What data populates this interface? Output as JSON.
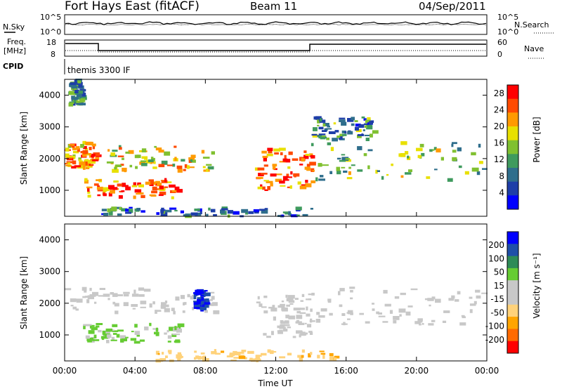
{
  "header": {
    "title": "Fort Hays East (fitACF)",
    "beam": "Beam 11",
    "date": "04/Sep/2011"
  },
  "status_panel": {
    "nsky_label": "N.Sky",
    "nsearch_label": "N.Search",
    "noise_axis_ticks": [
      "10^5",
      "10^0"
    ],
    "freq_label_line1": "Freq.",
    "freq_label_line2": "[MHz]",
    "freq_axis_ticks": [
      "18",
      "8"
    ],
    "nave_label": "Nave",
    "nave_axis_ticks": [
      "60",
      "0"
    ],
    "cpid_label": "CPID",
    "cpid_text": "themis 3300 IF"
  },
  "colors": {
    "power_scale": [
      "#0000ff",
      "#1e3ea8",
      "#2f6e8c",
      "#3f9a5e",
      "#80c030",
      "#e8e000",
      "#ff9a00",
      "#ff4a00",
      "#ff0000"
    ],
    "velocity_scale": [
      "#ff0000",
      "#ff6a00",
      "#ffa500",
      "#ffd27a",
      "#c8c8c8",
      "#c8c8c8",
      "#66cc33",
      "#2e8b57",
      "#1f4fa8",
      "#0000ff"
    ],
    "ground_scatter": "#c8c8c8"
  },
  "chart_data": [
    {
      "type": "heatmap",
      "name": "power",
      "title": "",
      "xlabel": "Time UT",
      "ylabel": "Slant Range [km]",
      "x_ticks": [
        "00:00",
        "04:00",
        "08:00",
        "12:00",
        "16:00",
        "20:00",
        "00:00"
      ],
      "x_range_hours": [
        0,
        24
      ],
      "y_ticks": [
        1000,
        2000,
        3000,
        4000
      ],
      "ylim": [
        180,
        4500
      ],
      "colorbar_label": "Power [dB]",
      "colorbar_ticks": [
        4,
        8,
        12,
        16,
        20,
        24,
        28
      ],
      "colorbar_range": [
        0,
        30
      ],
      "regions": [
        {
          "t": [
            0.0,
            1.8
          ],
          "r": [
            1700,
            2500
          ],
          "level": 22
        },
        {
          "t": [
            1.8,
            8.5
          ],
          "r": [
            1600,
            2400
          ],
          "level": 18
        },
        {
          "t": [
            1.0,
            6.5
          ],
          "r": [
            750,
            1350
          ],
          "level": 24
        },
        {
          "t": [
            10.8,
            14.0
          ],
          "r": [
            1000,
            2300
          ],
          "level": 24
        },
        {
          "t": [
            14.0,
            24.0
          ],
          "r": [
            1300,
            2500
          ],
          "level": 14
        },
        {
          "t": [
            14.0,
            17.5
          ],
          "r": [
            2600,
            3300
          ],
          "level": 10
        },
        {
          "t": [
            0.2,
            1.0
          ],
          "r": [
            3700,
            4500
          ],
          "level": 10
        },
        {
          "t": [
            2.0,
            14.0
          ],
          "r": [
            180,
            450
          ],
          "level": 8
        }
      ]
    },
    {
      "type": "heatmap",
      "name": "velocity",
      "title": "",
      "xlabel": "Time UT",
      "ylabel": "Slant Range [km]",
      "x_ticks": [
        "00:00",
        "04:00",
        "08:00",
        "12:00",
        "16:00",
        "20:00",
        "00:00"
      ],
      "x_range_hours": [
        0,
        24
      ],
      "y_ticks": [
        1000,
        2000,
        3000,
        4000
      ],
      "ylim": [
        180,
        4500
      ],
      "colorbar_label": "Velocity [m s⁻¹]",
      "colorbar_ticks": [
        200,
        100,
        50,
        15,
        -15,
        -50,
        -100,
        -200
      ],
      "colorbar_range": [
        -250,
        250
      ],
      "regions": [
        {
          "t": [
            0.0,
            8.5
          ],
          "r": [
            1700,
            2500
          ],
          "level": 0
        },
        {
          "t": [
            7.3,
            8.0
          ],
          "r": [
            1800,
            2400
          ],
          "level": 200
        },
        {
          "t": [
            1.0,
            6.5
          ],
          "r": [
            750,
            1350
          ],
          "level": 60
        },
        {
          "t": [
            10.8,
            14.0
          ],
          "r": [
            900,
            2300
          ],
          "level": 0
        },
        {
          "t": [
            14.0,
            24.0
          ],
          "r": [
            1300,
            2500
          ],
          "level": 0
        },
        {
          "t": [
            5.0,
            15.5
          ],
          "r": [
            180,
            500
          ],
          "level": -80
        }
      ]
    }
  ]
}
